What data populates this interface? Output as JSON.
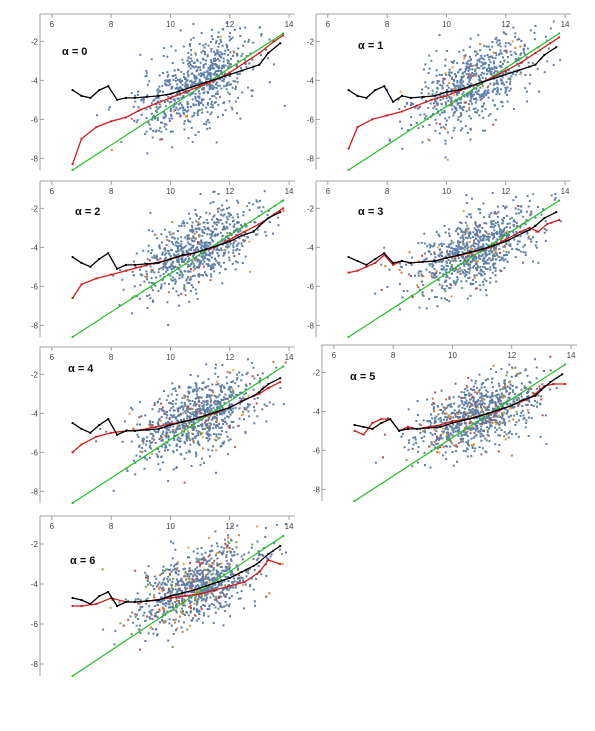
{
  "chart_data": [
    {
      "type": "scatter",
      "panel_label": "α = 0",
      "x_ticks": [
        6,
        8,
        10,
        12,
        14
      ],
      "y_ticks": [
        -2,
        -4,
        -6,
        -8
      ],
      "xlim": [
        5.6,
        14.2
      ],
      "ylim": [
        -8.6,
        -0.6
      ],
      "series": [
        {
          "role": "scatter",
          "color": "#5b7fa8",
          "cloud": {
            "x_mean": 10.9,
            "x_sd": 1.0,
            "slope": 0.72,
            "y_at_11": -4.1,
            "y_sd": 1.05,
            "n": 700
          }
        },
        {
          "role": "black-line",
          "color": "#000000",
          "x": [
            6.7,
            7.0,
            7.3,
            7.6,
            7.9,
            8.2,
            8.5,
            8.8,
            9.2,
            9.6,
            10.0,
            10.4,
            10.8,
            11.2,
            11.6,
            12.0,
            12.4,
            12.8,
            13.0,
            13.3,
            13.7
          ],
          "y": [
            -4.5,
            -4.8,
            -4.9,
            -4.5,
            -4.3,
            -5.0,
            -4.9,
            -4.9,
            -4.85,
            -4.8,
            -4.7,
            -4.5,
            -4.3,
            -4.1,
            -3.9,
            -3.7,
            -3.5,
            -3.3,
            -3.2,
            -2.6,
            -2.1
          ]
        },
        {
          "role": "red-line",
          "color": "#d01c1c",
          "x": [
            6.7,
            7.0,
            7.5,
            8.0,
            8.5,
            9.0,
            9.5,
            10.0,
            10.5,
            11.0,
            11.5,
            12.0,
            12.5,
            13.0,
            13.5,
            13.8
          ],
          "y": [
            -8.3,
            -7.0,
            -6.4,
            -6.1,
            -5.9,
            -5.5,
            -5.2,
            -4.9,
            -4.6,
            -4.3,
            -4.0,
            -3.6,
            -3.1,
            -2.6,
            -2.0,
            -1.7
          ]
        },
        {
          "role": "green-line",
          "color": "#22c222",
          "x": [
            6.7,
            13.8
          ],
          "y": [
            -8.6,
            -1.6
          ]
        }
      ]
    },
    {
      "type": "scatter",
      "panel_label": "α = 1",
      "x_ticks": [
        6,
        8,
        10,
        12,
        14
      ],
      "y_ticks": [
        -2,
        -4,
        -6,
        -8
      ],
      "xlim": [
        5.6,
        14.2
      ],
      "ylim": [
        -8.6,
        -0.6
      ],
      "series": [
        {
          "role": "scatter",
          "color": "#5b7fa8",
          "cloud": {
            "x_mean": 10.9,
            "x_sd": 1.0,
            "slope": 0.72,
            "y_at_11": -4.1,
            "y_sd": 1.0,
            "n": 700
          }
        },
        {
          "role": "black-line",
          "color": "#000000",
          "x": [
            6.7,
            7.0,
            7.3,
            7.6,
            7.9,
            8.2,
            8.5,
            8.8,
            9.2,
            9.6,
            10.0,
            10.4,
            10.8,
            11.2,
            11.6,
            12.0,
            12.4,
            12.8,
            13.0,
            13.3,
            13.7
          ],
          "y": [
            -4.5,
            -4.8,
            -4.9,
            -4.5,
            -4.3,
            -5.1,
            -4.8,
            -4.9,
            -4.85,
            -4.8,
            -4.6,
            -4.5,
            -4.3,
            -4.1,
            -3.9,
            -3.7,
            -3.5,
            -3.3,
            -3.2,
            -2.7,
            -2.3
          ]
        },
        {
          "role": "red-line",
          "color": "#d01c1c",
          "x": [
            6.7,
            7.0,
            7.5,
            8.0,
            8.5,
            9.0,
            9.5,
            10.0,
            10.5,
            11.0,
            11.5,
            12.0,
            12.5,
            13.0,
            13.5,
            13.8
          ],
          "y": [
            -7.5,
            -6.4,
            -6.0,
            -5.8,
            -5.6,
            -5.3,
            -5.0,
            -4.8,
            -4.5,
            -4.2,
            -3.9,
            -3.5,
            -3.1,
            -2.6,
            -2.1,
            -1.8
          ]
        },
        {
          "role": "green-line",
          "color": "#22c222",
          "x": [
            6.7,
            13.8
          ],
          "y": [
            -8.6,
            -1.6
          ]
        }
      ]
    },
    {
      "type": "scatter",
      "panel_label": "α = 2",
      "x_ticks": [
        6,
        8,
        10,
        12,
        14
      ],
      "y_ticks": [
        -2,
        -4,
        -6,
        -8
      ],
      "xlim": [
        5.6,
        14.2
      ],
      "ylim": [
        -8.6,
        -0.6
      ],
      "series": [
        {
          "role": "scatter",
          "color": "#5b7fa8",
          "cloud": {
            "x_mean": 10.9,
            "x_sd": 1.0,
            "slope": 0.65,
            "y_at_11": -4.1,
            "y_sd": 0.95,
            "n": 750
          }
        },
        {
          "role": "black-line",
          "color": "#000000",
          "x": [
            6.7,
            7.0,
            7.3,
            7.6,
            7.9,
            8.2,
            8.5,
            8.8,
            9.2,
            9.6,
            10.0,
            10.4,
            10.8,
            11.2,
            11.6,
            12.0,
            12.4,
            12.8,
            13.0,
            13.3,
            13.7
          ],
          "y": [
            -4.5,
            -4.8,
            -5.0,
            -4.6,
            -4.3,
            -5.1,
            -4.9,
            -4.9,
            -4.85,
            -4.8,
            -4.6,
            -4.4,
            -4.3,
            -4.1,
            -3.9,
            -3.7,
            -3.4,
            -3.2,
            -2.9,
            -2.5,
            -2.2
          ]
        },
        {
          "role": "red-line",
          "color": "#d01c1c",
          "x": [
            6.7,
            7.0,
            7.5,
            8.0,
            8.5,
            9.0,
            9.5,
            10.0,
            10.5,
            11.0,
            11.5,
            12.0,
            12.5,
            13.0,
            13.5,
            13.8
          ],
          "y": [
            -6.6,
            -5.9,
            -5.6,
            -5.4,
            -5.2,
            -5.0,
            -4.8,
            -4.6,
            -4.4,
            -4.2,
            -4.0,
            -3.6,
            -3.2,
            -2.8,
            -2.3,
            -2.0
          ]
        },
        {
          "role": "green-line",
          "color": "#22c222",
          "x": [
            6.7,
            13.8
          ],
          "y": [
            -8.6,
            -1.6
          ]
        }
      ]
    },
    {
      "type": "scatter",
      "panel_label": "α = 3",
      "x_ticks": [
        6,
        8,
        10,
        12,
        14
      ],
      "y_ticks": [
        -2,
        -4,
        -6,
        -8
      ],
      "xlim": [
        5.6,
        14.2
      ],
      "ylim": [
        -8.6,
        -0.6
      ],
      "series": [
        {
          "role": "scatter",
          "color": "#5b7fa8",
          "cloud": {
            "x_mean": 10.9,
            "x_sd": 1.05,
            "slope": 0.6,
            "y_at_11": -4.1,
            "y_sd": 0.9,
            "n": 850
          }
        },
        {
          "role": "black-line",
          "color": "#000000",
          "x": [
            6.7,
            7.0,
            7.3,
            7.6,
            7.9,
            8.2,
            8.5,
            8.8,
            9.2,
            9.6,
            10.0,
            10.4,
            10.8,
            11.2,
            11.6,
            12.0,
            12.4,
            12.8,
            13.0,
            13.3,
            13.7
          ],
          "y": [
            -4.5,
            -4.7,
            -4.9,
            -4.6,
            -4.3,
            -4.8,
            -4.7,
            -4.8,
            -4.75,
            -4.7,
            -4.55,
            -4.4,
            -4.25,
            -4.1,
            -3.9,
            -3.7,
            -3.4,
            -3.1,
            -2.9,
            -2.5,
            -2.2
          ]
        },
        {
          "role": "red-line",
          "color": "#d01c1c",
          "x": [
            6.7,
            7.0,
            7.3,
            7.6,
            7.9,
            8.2,
            8.5,
            8.8,
            9.2,
            9.6,
            10.0,
            10.5,
            11.0,
            11.5,
            12.0,
            12.5,
            12.8,
            13.1,
            13.4,
            13.8
          ],
          "y": [
            -5.3,
            -5.2,
            -5.0,
            -4.8,
            -4.4,
            -4.9,
            -4.7,
            -4.8,
            -4.75,
            -4.7,
            -4.55,
            -4.4,
            -4.2,
            -4.0,
            -3.6,
            -3.2,
            -3.0,
            -3.2,
            -2.8,
            -2.6
          ]
        },
        {
          "role": "green-line",
          "color": "#22c222",
          "x": [
            6.7,
            13.8
          ],
          "y": [
            -8.6,
            -1.6
          ]
        }
      ]
    },
    {
      "type": "scatter",
      "panel_label": "α = 4",
      "x_ticks": [
        6,
        8,
        10,
        12,
        14
      ],
      "y_ticks": [
        -2,
        -4,
        -6,
        -8
      ],
      "xlim": [
        5.6,
        14.2
      ],
      "ylim": [
        -8.6,
        -0.6
      ],
      "series": [
        {
          "role": "scatter",
          "color": "#5b7fa8",
          "cloud": {
            "x_mean": 10.9,
            "x_sd": 1.05,
            "slope": 0.6,
            "y_at_11": -4.1,
            "y_sd": 0.9,
            "n": 850
          }
        },
        {
          "role": "black-line",
          "color": "#000000",
          "x": [
            6.7,
            7.0,
            7.3,
            7.6,
            7.9,
            8.2,
            8.5,
            8.8,
            9.2,
            9.6,
            10.0,
            10.4,
            10.8,
            11.2,
            11.6,
            12.0,
            12.4,
            12.8,
            13.0,
            13.3,
            13.7
          ],
          "y": [
            -4.5,
            -4.8,
            -5.0,
            -4.6,
            -4.3,
            -5.1,
            -4.9,
            -4.9,
            -4.85,
            -4.8,
            -4.6,
            -4.45,
            -4.3,
            -4.1,
            -3.9,
            -3.7,
            -3.4,
            -3.1,
            -2.9,
            -2.5,
            -2.2
          ]
        },
        {
          "role": "red-line",
          "color": "#d01c1c",
          "x": [
            6.7,
            7.0,
            7.5,
            8.0,
            8.5,
            9.0,
            9.5,
            10.0,
            10.5,
            11.0,
            11.5,
            12.0,
            12.5,
            13.0,
            13.3,
            13.7
          ],
          "y": [
            -6.0,
            -5.6,
            -5.2,
            -5.0,
            -4.9,
            -4.85,
            -4.7,
            -4.55,
            -4.4,
            -4.2,
            -4.0,
            -3.7,
            -3.3,
            -3.0,
            -2.7,
            -2.4
          ]
        },
        {
          "role": "green-line",
          "color": "#22c222",
          "x": [
            6.7,
            13.8
          ],
          "y": [
            -8.6,
            -1.6
          ]
        }
      ]
    },
    {
      "type": "scatter",
      "panel_label": "α = 5",
      "x_ticks": [
        6,
        8,
        10,
        12,
        14
      ],
      "y_ticks": [
        -2,
        -4,
        -6,
        -8
      ],
      "xlim": [
        5.6,
        14.2
      ],
      "ylim": [
        -8.6,
        -0.6
      ],
      "series": [
        {
          "role": "scatter",
          "color": "#5b7fa8",
          "cloud": {
            "x_mean": 10.9,
            "x_sd": 1.05,
            "slope": 0.55,
            "y_at_11": -4.1,
            "y_sd": 0.85,
            "n": 900
          }
        },
        {
          "role": "black-line",
          "color": "#000000",
          "x": [
            6.7,
            7.0,
            7.3,
            7.6,
            7.9,
            8.2,
            8.5,
            8.8,
            9.2,
            9.6,
            10.0,
            10.4,
            10.8,
            11.2,
            11.6,
            12.0,
            12.4,
            12.8,
            13.0,
            13.3,
            13.7
          ],
          "y": [
            -4.7,
            -4.8,
            -4.9,
            -4.6,
            -4.4,
            -5.0,
            -4.9,
            -4.9,
            -4.85,
            -4.8,
            -4.6,
            -4.45,
            -4.3,
            -4.1,
            -3.9,
            -3.7,
            -3.4,
            -3.2,
            -2.9,
            -2.5,
            -2.1
          ]
        },
        {
          "role": "red-line",
          "color": "#d01c1c",
          "x": [
            6.7,
            7.0,
            7.3,
            7.6,
            7.9,
            8.2,
            8.5,
            8.8,
            9.2,
            9.6,
            10.0,
            10.5,
            11.0,
            11.5,
            12.0,
            12.5,
            12.8,
            13.1,
            13.4,
            13.8
          ],
          "y": [
            -5.0,
            -5.2,
            -4.6,
            -4.4,
            -4.4,
            -5.0,
            -4.8,
            -4.9,
            -4.8,
            -4.7,
            -4.5,
            -4.4,
            -4.2,
            -4.0,
            -3.7,
            -3.4,
            -3.1,
            -2.7,
            -2.6,
            -2.6
          ]
        },
        {
          "role": "green-line",
          "color": "#22c222",
          "x": [
            6.7,
            13.8
          ],
          "y": [
            -8.6,
            -1.6
          ]
        }
      ]
    },
    {
      "type": "scatter",
      "panel_label": "α = 6",
      "x_ticks": [
        6,
        8,
        10,
        12,
        14
      ],
      "y_ticks": [
        -2,
        -4,
        -6,
        -8
      ],
      "xlim": [
        5.6,
        14.2
      ],
      "ylim": [
        -8.6,
        -0.6
      ],
      "series": [
        {
          "role": "scatter",
          "color": "#5b7fa8",
          "cloud": {
            "x_mean": 10.9,
            "x_sd": 1.05,
            "slope": 0.55,
            "y_at_11": -4.1,
            "y_sd": 0.85,
            "n": 950
          }
        },
        {
          "role": "black-line",
          "color": "#000000",
          "x": [
            6.7,
            7.0,
            7.3,
            7.6,
            7.9,
            8.2,
            8.5,
            8.8,
            9.2,
            9.6,
            10.0,
            10.4,
            10.8,
            11.2,
            11.6,
            12.0,
            12.4,
            12.8,
            13.0,
            13.3,
            13.7
          ],
          "y": [
            -4.7,
            -4.8,
            -5.0,
            -4.6,
            -4.4,
            -5.1,
            -4.9,
            -4.9,
            -4.85,
            -4.8,
            -4.6,
            -4.45,
            -4.3,
            -4.1,
            -3.9,
            -3.7,
            -3.4,
            -3.1,
            -2.9,
            -2.5,
            -2.1
          ]
        },
        {
          "role": "red-line",
          "color": "#d01c1c",
          "x": [
            6.7,
            7.0,
            7.5,
            8.0,
            8.5,
            9.0,
            9.5,
            10.0,
            10.5,
            11.0,
            11.5,
            12.0,
            12.5,
            13.0,
            13.3,
            13.7
          ],
          "y": [
            -5.1,
            -5.1,
            -5.0,
            -4.7,
            -4.9,
            -4.9,
            -4.8,
            -4.7,
            -4.6,
            -4.5,
            -4.3,
            -4.1,
            -3.9,
            -3.4,
            -2.8,
            -3.0
          ]
        },
        {
          "role": "green-line",
          "color": "#22c222",
          "x": [
            6.7,
            13.8
          ],
          "y": [
            -8.6,
            -1.6
          ]
        }
      ]
    }
  ]
}
